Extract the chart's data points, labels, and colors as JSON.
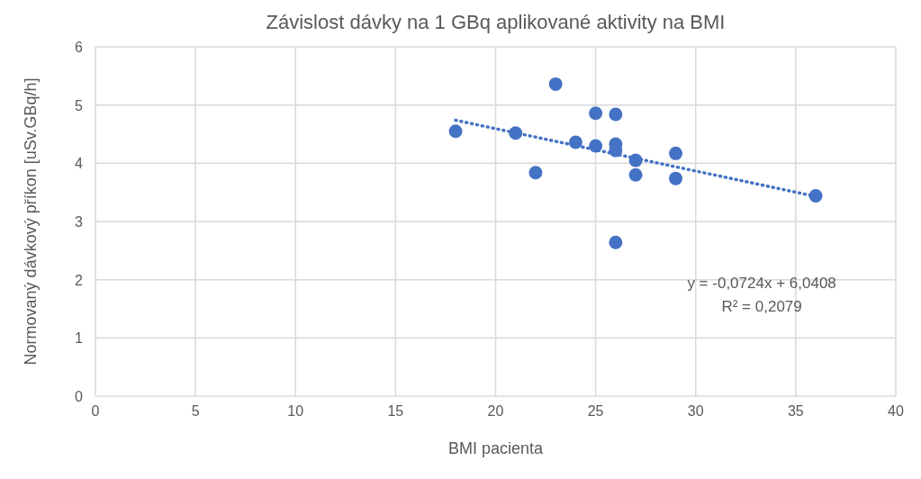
{
  "chart_data": {
    "type": "scatter",
    "title": "Závislost dávky na 1 GBq aplikované aktivity na BMI",
    "xlabel": "BMI pacienta",
    "ylabel": "Normovaný dávkový příkon [uSv.GBq/h]",
    "xlim": [
      0,
      40
    ],
    "xticks": [
      0,
      5,
      10,
      15,
      20,
      25,
      30,
      35,
      40
    ],
    "ylim": [
      0,
      6
    ],
    "yticks": [
      0,
      1,
      2,
      3,
      4,
      5,
      6
    ],
    "grid": true,
    "marker": "circle",
    "series": [
      {
        "color": "#4472c4",
        "x": [
          18,
          21,
          22,
          23,
          24,
          25,
          25,
          26,
          26,
          26,
          26,
          27,
          27,
          29,
          29,
          36
        ],
        "values": [
          4.55,
          4.52,
          3.84,
          5.36,
          4.36,
          4.86,
          4.3,
          4.84,
          4.33,
          4.22,
          2.64,
          4.05,
          3.8,
          4.17,
          3.74,
          3.44
        ]
      },
      {
        "type": "line",
        "color": "#4472c4",
        "line_style": "dotted",
        "marker": "none",
        "x": [
          18,
          36
        ],
        "values": [
          4.74,
          3.43
        ]
      }
    ],
    "annotations": [
      "y = -0,0724x + 6,0408",
      "R² = 0,2079"
    ]
  }
}
